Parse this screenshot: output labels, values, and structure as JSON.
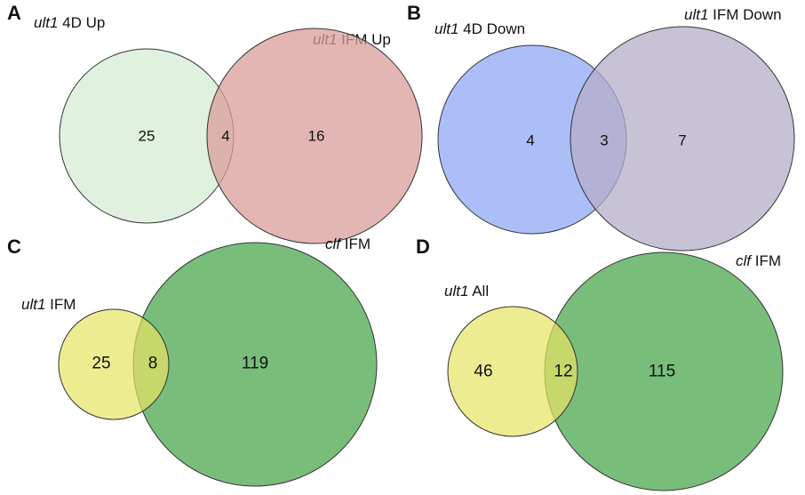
{
  "panels": {
    "a": {
      "letter": "A",
      "set1": {
        "label_italic": "ult1",
        "label_rest": " 4D Up",
        "only": "25",
        "color": "#d6ecd4"
      },
      "set2": {
        "label_italic": "ult1",
        "label_rest": " IFM Up",
        "only": "16",
        "color": "#d99e9a"
      },
      "overlap": "4"
    },
    "b": {
      "letter": "B",
      "set1": {
        "label_italic": "ult1",
        "label_rest": " 4D Down",
        "only": "4",
        "color": "#8fa8f5"
      },
      "set2": {
        "label_italic": "ult1",
        "label_rest": " IFM Down",
        "only": "7",
        "color": "#b5aec8"
      },
      "overlap": "3"
    },
    "c": {
      "letter": "C",
      "set1": {
        "label_italic": "ult1",
        "label_rest": " IFM",
        "only": "25",
        "color": "#e6e462"
      },
      "set2": {
        "label_italic": "clf",
        "label_rest": " IFM",
        "only": "119",
        "color": "#79bd7b"
      },
      "overlap": "8"
    },
    "d": {
      "letter": "D",
      "set1": {
        "label_italic": "ult1",
        "label_rest": " All",
        "only": "46",
        "color": "#e6e462"
      },
      "set2": {
        "label_italic": "clf",
        "label_rest": " IFM",
        "only": "115",
        "color": "#79bd7b"
      },
      "overlap": "12"
    }
  }
}
